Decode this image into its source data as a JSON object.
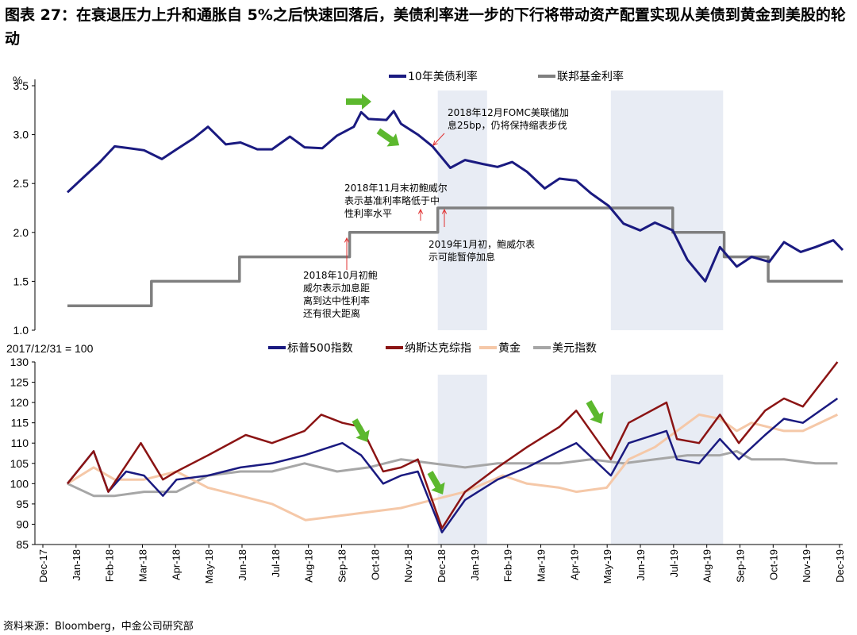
{
  "title": "图表 27：在衰退压力上升和通胀自 5%之后快速回落后，美债利率进一步的下行将带动资产配置实现从美债到黄金到美股的轮动",
  "source": "资料来源：Bloomberg，中金公司研究部",
  "colors": {
    "ust10y": "#1a1a80",
    "fedfunds": "#7f7f7f",
    "spx": "#1a1a80",
    "nasdaq": "#8b1414",
    "gold": "#f5c8a8",
    "dxy": "#a6a6a6",
    "shade": "#e8ecf4",
    "arrow_green": "#5cb82e",
    "annot_arrow": "#e03030"
  },
  "chart_data": [
    {
      "type": "line",
      "unit_label": "%",
      "ylim": [
        1.0,
        3.5
      ],
      "yticks": [
        "1.0",
        "1.5",
        "2.0",
        "2.5",
        "3.0",
        "3.5"
      ],
      "series": [
        {
          "name": "10年美债利率",
          "points": [
            [
              "2018-01-01",
              2.41
            ],
            [
              "2018-01-15",
              2.55
            ],
            [
              "2018-02-01",
              2.72
            ],
            [
              "2018-02-15",
              2.88
            ],
            [
              "2018-03-01",
              2.86
            ],
            [
              "2018-03-15",
              2.84
            ],
            [
              "2018-04-01",
              2.75
            ],
            [
              "2018-04-15",
              2.85
            ],
            [
              "2018-05-01",
              2.96
            ],
            [
              "2018-05-15",
              3.08
            ],
            [
              "2018-06-01",
              2.9
            ],
            [
              "2018-06-15",
              2.92
            ],
            [
              "2018-07-01",
              2.85
            ],
            [
              "2018-07-15",
              2.85
            ],
            [
              "2018-08-01",
              2.98
            ],
            [
              "2018-08-15",
              2.87
            ],
            [
              "2018-09-01",
              2.86
            ],
            [
              "2018-09-15",
              2.99
            ],
            [
              "2018-10-01",
              3.08
            ],
            [
              "2018-10-08",
              3.23
            ],
            [
              "2018-10-15",
              3.16
            ],
            [
              "2018-11-01",
              3.15
            ],
            [
              "2018-11-08",
              3.24
            ],
            [
              "2018-11-15",
              3.11
            ],
            [
              "2018-12-01",
              3.0
            ],
            [
              "2018-12-15",
              2.88
            ],
            [
              "2019-01-01",
              2.66
            ],
            [
              "2019-01-15",
              2.74
            ],
            [
              "2019-02-01",
              2.7
            ],
            [
              "2019-02-15",
              2.67
            ],
            [
              "2019-03-01",
              2.72
            ],
            [
              "2019-03-15",
              2.62
            ],
            [
              "2019-04-01",
              2.45
            ],
            [
              "2019-04-15",
              2.55
            ],
            [
              "2019-05-01",
              2.53
            ],
            [
              "2019-05-15",
              2.4
            ],
            [
              "2019-06-01",
              2.27
            ],
            [
              "2019-06-15",
              2.09
            ],
            [
              "2019-07-01",
              2.02
            ],
            [
              "2019-07-15",
              2.1
            ],
            [
              "2019-08-01",
              2.02
            ],
            [
              "2019-08-15",
              1.72
            ],
            [
              "2019-09-01",
              1.5
            ],
            [
              "2019-09-15",
              1.85
            ],
            [
              "2019-10-01",
              1.65
            ],
            [
              "2019-10-15",
              1.75
            ],
            [
              "2019-11-01",
              1.7
            ],
            [
              "2019-11-15",
              1.9
            ],
            [
              "2019-12-01",
              1.8
            ],
            [
              "2019-12-15",
              1.85
            ],
            [
              "2020-01-01",
              1.92
            ],
            [
              "2020-01-10",
              1.82
            ]
          ]
        },
        {
          "name": "联邦基金利率",
          "points": [
            [
              "2018-01-01",
              1.25
            ],
            [
              "2018-03-22",
              1.25
            ],
            [
              "2018-03-22",
              1.5
            ],
            [
              "2018-06-14",
              1.5
            ],
            [
              "2018-06-14",
              1.75
            ],
            [
              "2018-09-27",
              1.75
            ],
            [
              "2018-09-27",
              2.0
            ],
            [
              "2018-12-20",
              2.0
            ],
            [
              "2018-12-20",
              2.25
            ],
            [
              "2019-08-01",
              2.25
            ],
            [
              "2019-08-01",
              2.0
            ],
            [
              "2019-09-19",
              2.0
            ],
            [
              "2019-09-19",
              1.75
            ],
            [
              "2019-10-31",
              1.75
            ],
            [
              "2019-10-31",
              1.5
            ],
            [
              "2020-01-10",
              1.5
            ]
          ]
        }
      ],
      "annotations": [
        "2018年12月FOMC美联储加",
        "息25bp，仍将保持缩表步伐",
        "2018年11月末初鲍威尔",
        "表示基准利率略低于中",
        "性利率水平",
        "2019年1月初，鲍威尔表",
        "示可能暂停加息",
        "2018年10月初鲍",
        "威尔表示加息距",
        "离到达中性利率",
        "还有很大距离"
      ]
    },
    {
      "type": "line",
      "unit_label": "2017/12/31 = 100",
      "ylim": [
        85,
        130
      ],
      "yticks": [
        "85",
        "90",
        "95",
        "100",
        "105",
        "110",
        "115",
        "120",
        "125",
        "130"
      ],
      "series": [
        {
          "name": "标普500指数",
          "points": [
            [
              "2018-01-01",
              100
            ],
            [
              "2018-01-26",
              108
            ],
            [
              "2018-02-09",
              98
            ],
            [
              "2018-02-26",
              103
            ],
            [
              "2018-03-15",
              102
            ],
            [
              "2018-04-02",
              97
            ],
            [
              "2018-04-15",
              101
            ],
            [
              "2018-05-15",
              102
            ],
            [
              "2018-06-15",
              104
            ],
            [
              "2018-07-15",
              105
            ],
            [
              "2018-08-15",
              107
            ],
            [
              "2018-09-20",
              110
            ],
            [
              "2018-10-08",
              107
            ],
            [
              "2018-10-29",
              100
            ],
            [
              "2018-11-15",
              102
            ],
            [
              "2018-12-01",
              103
            ],
            [
              "2018-12-24",
              88
            ],
            [
              "2019-01-15",
              96
            ],
            [
              "2019-02-15",
              101
            ],
            [
              "2019-03-15",
              104
            ],
            [
              "2019-04-15",
              108
            ],
            [
              "2019-05-01",
              110
            ],
            [
              "2019-06-03",
              102
            ],
            [
              "2019-06-20",
              110
            ],
            [
              "2019-07-26",
              113
            ],
            [
              "2019-08-05",
              106
            ],
            [
              "2019-08-26",
              105
            ],
            [
              "2019-09-15",
              111
            ],
            [
              "2019-10-03",
              106
            ],
            [
              "2019-10-28",
              112
            ],
            [
              "2019-11-15",
              116
            ],
            [
              "2019-12-03",
              115
            ],
            [
              "2020-01-05",
              121
            ]
          ]
        },
        {
          "name": "纳斯达克综指",
          "points": [
            [
              "2018-01-01",
              100
            ],
            [
              "2018-01-26",
              108
            ],
            [
              "2018-02-09",
              98
            ],
            [
              "2018-03-12",
              110
            ],
            [
              "2018-04-02",
              101
            ],
            [
              "2018-04-15",
              103
            ],
            [
              "2018-05-15",
              107
            ],
            [
              "2018-06-20",
              112
            ],
            [
              "2018-07-15",
              110
            ],
            [
              "2018-08-15",
              113
            ],
            [
              "2018-08-31",
              117
            ],
            [
              "2018-09-20",
              115
            ],
            [
              "2018-10-08",
              114
            ],
            [
              "2018-10-29",
              103
            ],
            [
              "2018-11-15",
              104
            ],
            [
              "2018-12-01",
              106
            ],
            [
              "2018-12-24",
              89
            ],
            [
              "2019-01-15",
              98
            ],
            [
              "2019-02-15",
              104
            ],
            [
              "2019-03-15",
              109
            ],
            [
              "2019-04-15",
              114
            ],
            [
              "2019-05-01",
              118
            ],
            [
              "2019-06-03",
              106
            ],
            [
              "2019-06-20",
              115
            ],
            [
              "2019-07-26",
              120
            ],
            [
              "2019-08-05",
              111
            ],
            [
              "2019-08-26",
              110
            ],
            [
              "2019-09-15",
              117
            ],
            [
              "2019-10-03",
              110
            ],
            [
              "2019-10-28",
              118
            ],
            [
              "2019-11-15",
              121
            ],
            [
              "2019-12-03",
              119
            ],
            [
              "2020-01-05",
              130
            ]
          ]
        },
        {
          "name": "黄金",
          "points": [
            [
              "2018-01-01",
              100
            ],
            [
              "2018-01-26",
              104
            ],
            [
              "2018-02-15",
              101
            ],
            [
              "2018-03-15",
              101
            ],
            [
              "2018-04-15",
              103
            ],
            [
              "2018-05-15",
              99
            ],
            [
              "2018-06-15",
              97
            ],
            [
              "2018-07-15",
              95
            ],
            [
              "2018-08-16",
              91
            ],
            [
              "2018-09-15",
              92
            ],
            [
              "2018-10-15",
              93
            ],
            [
              "2018-11-15",
              94
            ],
            [
              "2018-12-15",
              96
            ],
            [
              "2019-01-15",
              98
            ],
            [
              "2019-02-20",
              102
            ],
            [
              "2019-03-15",
              100
            ],
            [
              "2019-04-15",
              99
            ],
            [
              "2019-05-01",
              98
            ],
            [
              "2019-05-30",
              99
            ],
            [
              "2019-06-20",
              106
            ],
            [
              "2019-07-15",
              109
            ],
            [
              "2019-08-05",
              113
            ],
            [
              "2019-08-26",
              117
            ],
            [
              "2019-09-15",
              116
            ],
            [
              "2019-10-01",
              113
            ],
            [
              "2019-10-15",
              115
            ],
            [
              "2019-11-15",
              113
            ],
            [
              "2019-12-03",
              113
            ],
            [
              "2020-01-05",
              117
            ]
          ]
        },
        {
          "name": "美元指数",
          "points": [
            [
              "2018-01-01",
              100
            ],
            [
              "2018-01-26",
              97
            ],
            [
              "2018-02-15",
              97
            ],
            [
              "2018-03-15",
              98
            ],
            [
              "2018-04-15",
              98
            ],
            [
              "2018-05-15",
              102
            ],
            [
              "2018-06-15",
              103
            ],
            [
              "2018-07-15",
              103
            ],
            [
              "2018-08-15",
              105
            ],
            [
              "2018-09-15",
              103
            ],
            [
              "2018-10-15",
              104
            ],
            [
              "2018-11-15",
              106
            ],
            [
              "2018-12-15",
              105
            ],
            [
              "2019-01-15",
              104
            ],
            [
              "2019-02-15",
              105
            ],
            [
              "2019-03-15",
              105
            ],
            [
              "2019-04-15",
              105
            ],
            [
              "2019-05-15",
              106
            ],
            [
              "2019-06-15",
              105
            ],
            [
              "2019-07-15",
              106
            ],
            [
              "2019-08-15",
              107
            ],
            [
              "2019-09-15",
              107
            ],
            [
              "2019-10-01",
              108
            ],
            [
              "2019-10-15",
              106
            ],
            [
              "2019-11-15",
              106
            ],
            [
              "2019-12-15",
              105
            ],
            [
              "2020-01-05",
              105
            ]
          ]
        }
      ]
    }
  ],
  "x_axis": {
    "start": "2017-12-01",
    "end": "2020-01-10",
    "labels": [
      "Dec-17",
      "Jan-18",
      "Feb-18",
      "Mar-18",
      "Apr-18",
      "May-18",
      "Jun-18",
      "Jul-18",
      "Aug-18",
      "Sep-18",
      "Oct-18",
      "Nov-18",
      "Dec-18",
      "Jan-19",
      "Feb-19",
      "Mar-19",
      "Apr-19",
      "May-19",
      "Jun-19",
      "Jul-19",
      "Aug-19",
      "Sep-19",
      "Oct-19",
      "Nov-19",
      "Dec-19"
    ]
  },
  "shaded_periods": [
    [
      "2018-12-20",
      "2019-02-05"
    ],
    [
      "2019-06-03",
      "2019-09-18"
    ]
  ]
}
